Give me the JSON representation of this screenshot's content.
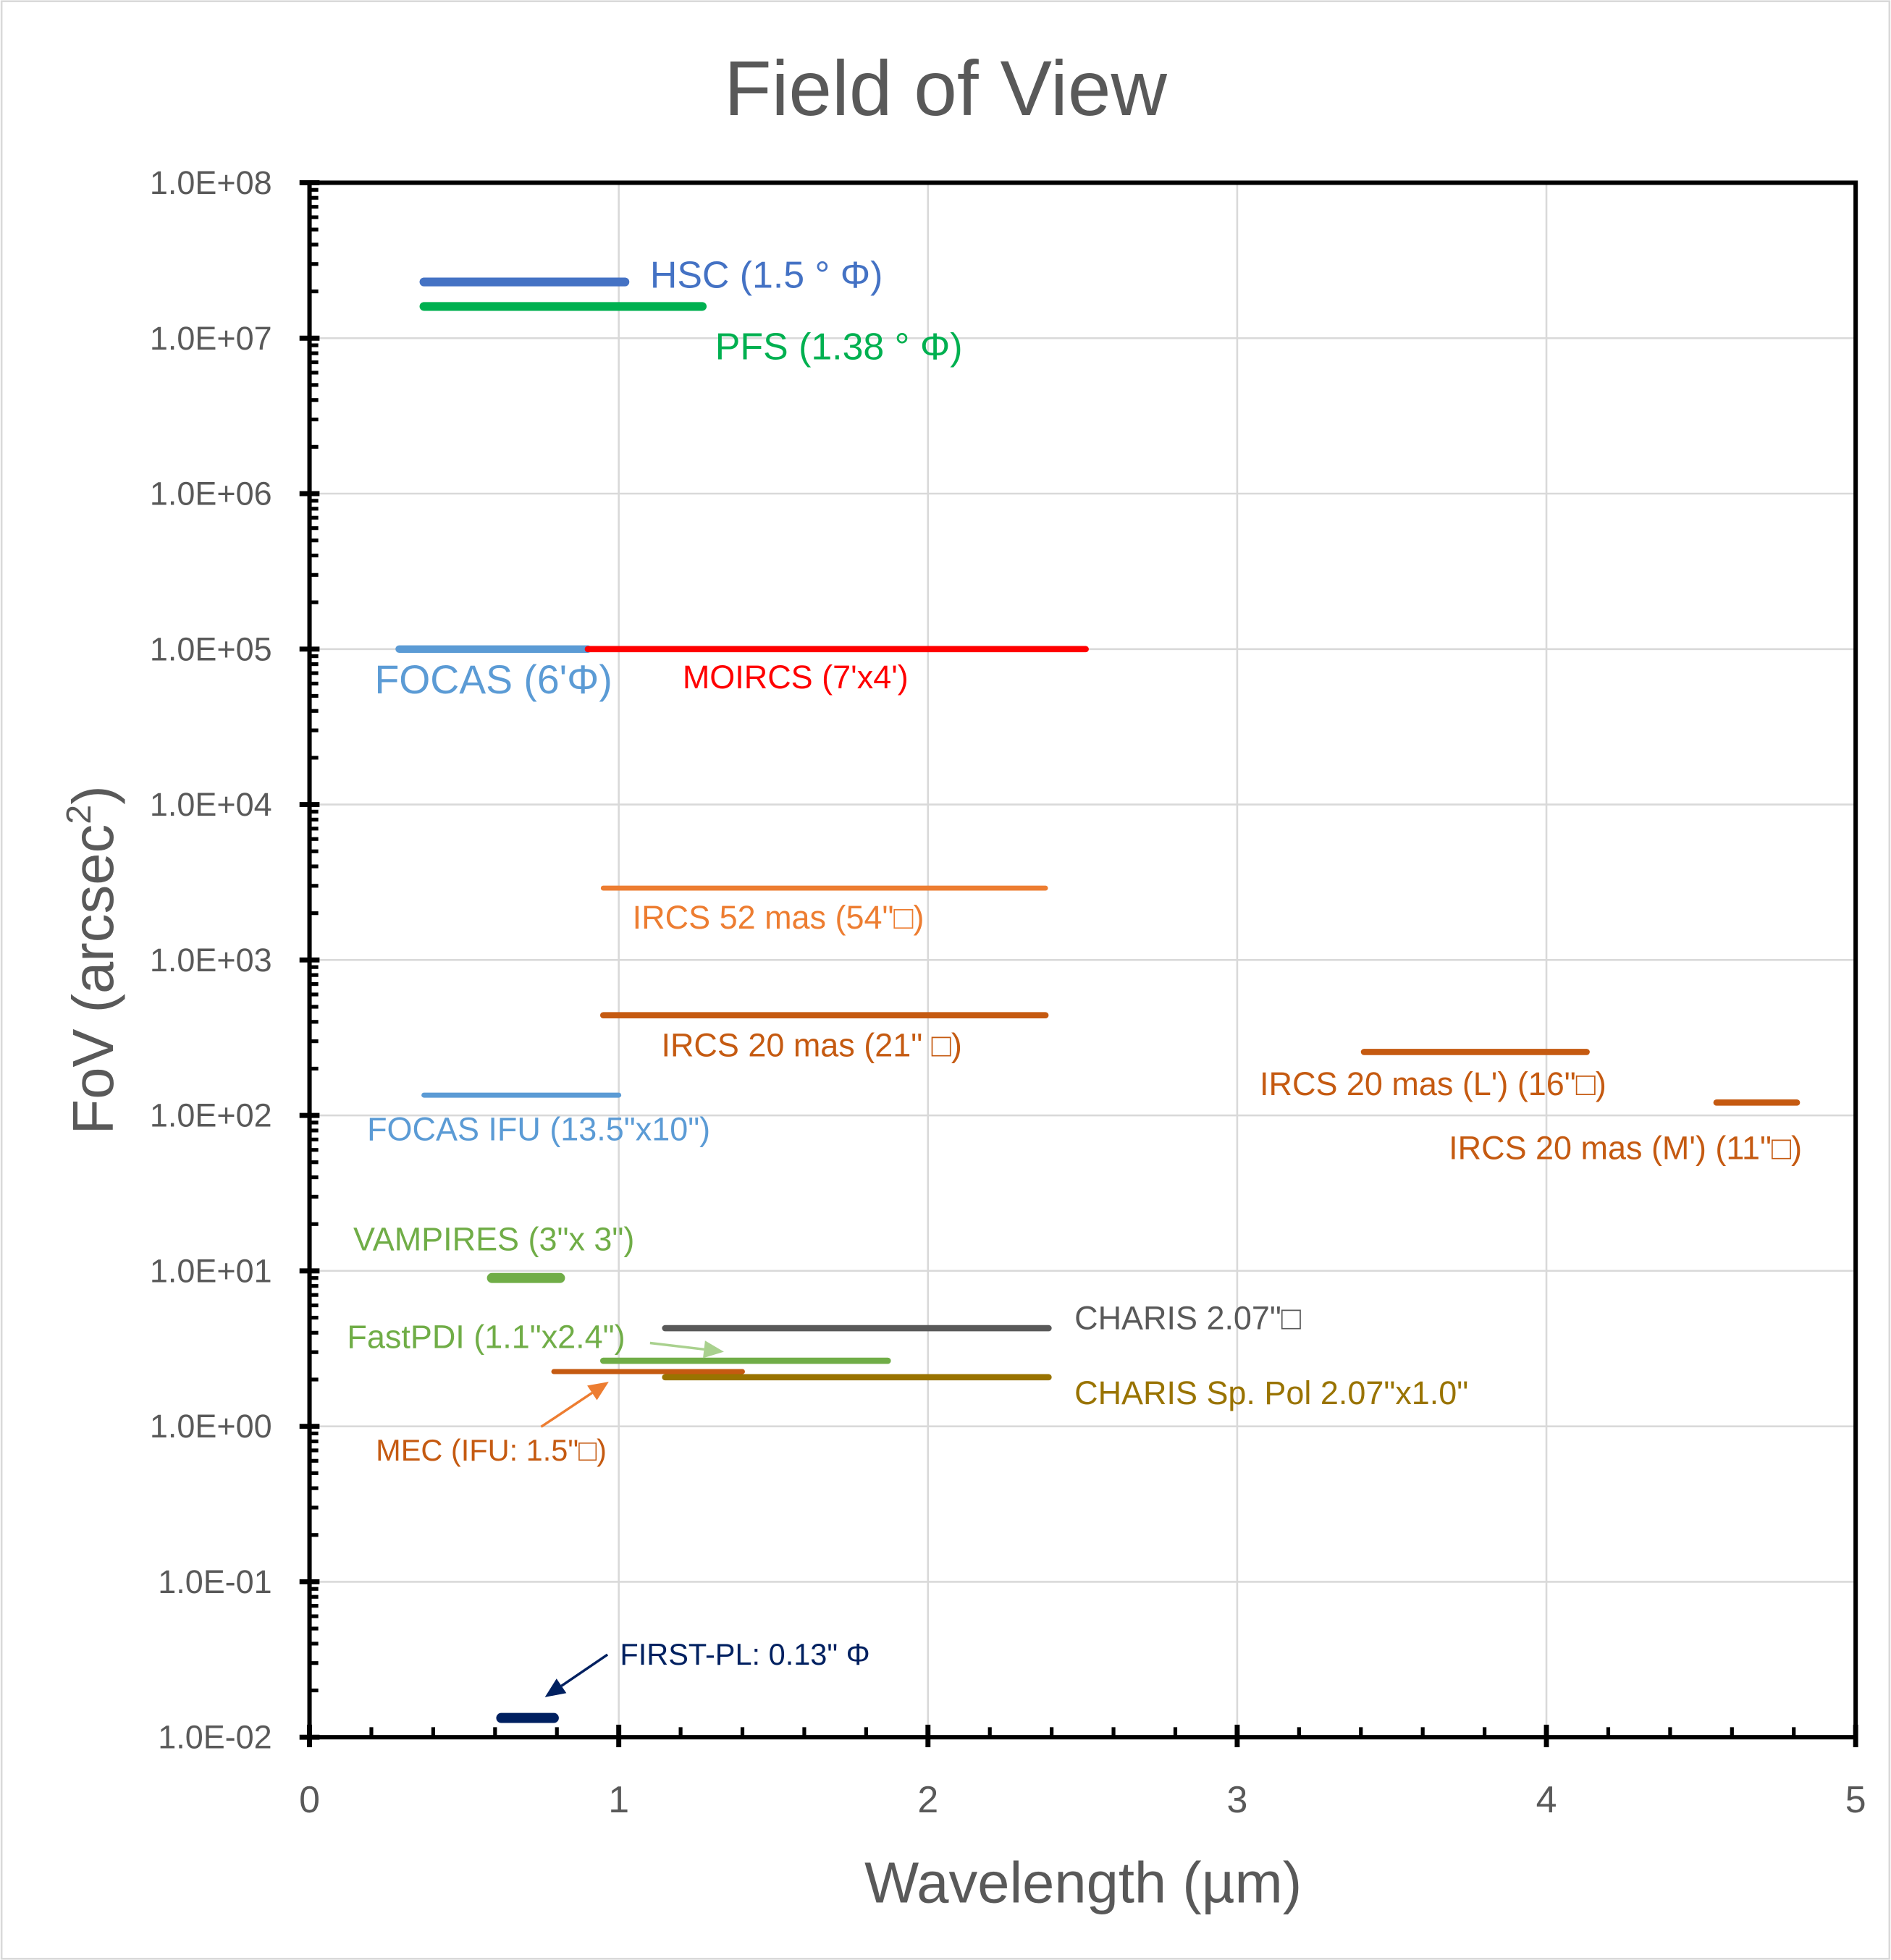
{
  "chart_data": {
    "type": "line",
    "title": "Field of View",
    "xlabel": "Wavelength (µm)",
    "ylabel": "FoV (arcsec",
    "ylabel_superscript": "2",
    "ylabel_close": ")",
    "xlim": [
      0,
      5
    ],
    "ylim": [
      0.01,
      100000000
    ],
    "y_scale": "log",
    "grid": true,
    "x_ticks": [
      "0",
      "1",
      "2",
      "3",
      "4",
      "5"
    ],
    "y_ticks": [
      "1.0E-02",
      "1.0E-01",
      "1.0E+00",
      "1.0E+01",
      "1.0E+02",
      "1.0E+03",
      "1.0E+04",
      "1.0E+05",
      "1.0E+06",
      "1.0E+07",
      "1.0E+08"
    ],
    "series": [
      {
        "name": "HSC (1.5 ° Φ)",
        "x": [
          0.37,
          1.02
        ],
        "y": 23000000,
        "color": "#4472C4"
      },
      {
        "name": "PFS (1.38 ° Φ)",
        "x": [
          0.37,
          1.27
        ],
        "y": 16000000,
        "color": "#00B050"
      },
      {
        "name": "FOCAS (6'Φ)",
        "x": [
          0.29,
          0.9
        ],
        "y": 100000,
        "color": "#5B9BD5"
      },
      {
        "name": "MOIRCS (7'x4')",
        "x": [
          0.9,
          2.51
        ],
        "y": 100000,
        "color": "#FF0000"
      },
      {
        "name": "IRCS 52 mas (54\"□)",
        "x": [
          0.95,
          2.38
        ],
        "y": 2900,
        "color": "#ED7D31"
      },
      {
        "name": "IRCS 20 mas (21\" □)",
        "x": [
          0.95,
          2.38
        ],
        "y": 441,
        "color": "#C55A11"
      },
      {
        "name": "IRCS 20 mas (L') (16\"□)",
        "x": [
          3.41,
          4.13
        ],
        "y": 256,
        "color": "#C55A11"
      },
      {
        "name": "IRCS 20 mas (M') (11\"□)",
        "x": [
          4.55,
          4.81
        ],
        "y": 121,
        "color": "#C55A11"
      },
      {
        "name": "FOCAS IFU (13.5\"x10\")",
        "x": [
          0.37,
          1.0
        ],
        "y": 135,
        "color": "#5B9BD5"
      },
      {
        "name": "VAMPIRES (3\"x 3\")",
        "x": [
          0.59,
          0.81
        ],
        "y": 9,
        "color": "#70AD47"
      },
      {
        "name": "CHARIS 2.07\"□",
        "x": [
          1.15,
          2.39
        ],
        "y": 4.28,
        "color": "#595959"
      },
      {
        "name": "FastPDI (1.1\"x2.4\")",
        "x": [
          0.95,
          1.87
        ],
        "y": 2.64,
        "color": "#70AD47"
      },
      {
        "name": "MEC (IFU: 1.5\"□)",
        "x": [
          0.79,
          1.4
        ],
        "y": 2.25,
        "color": "#C55A11"
      },
      {
        "name": "CHARIS Sp. Pol 2.07\"x1.0\"",
        "x": [
          1.15,
          2.39
        ],
        "y": 2.07,
        "color": "#997300"
      },
      {
        "name": "FIRST-PL: 0.13\" Φ",
        "x": [
          0.62,
          0.79
        ],
        "y": 0.0133,
        "color": "#002060"
      }
    ]
  }
}
